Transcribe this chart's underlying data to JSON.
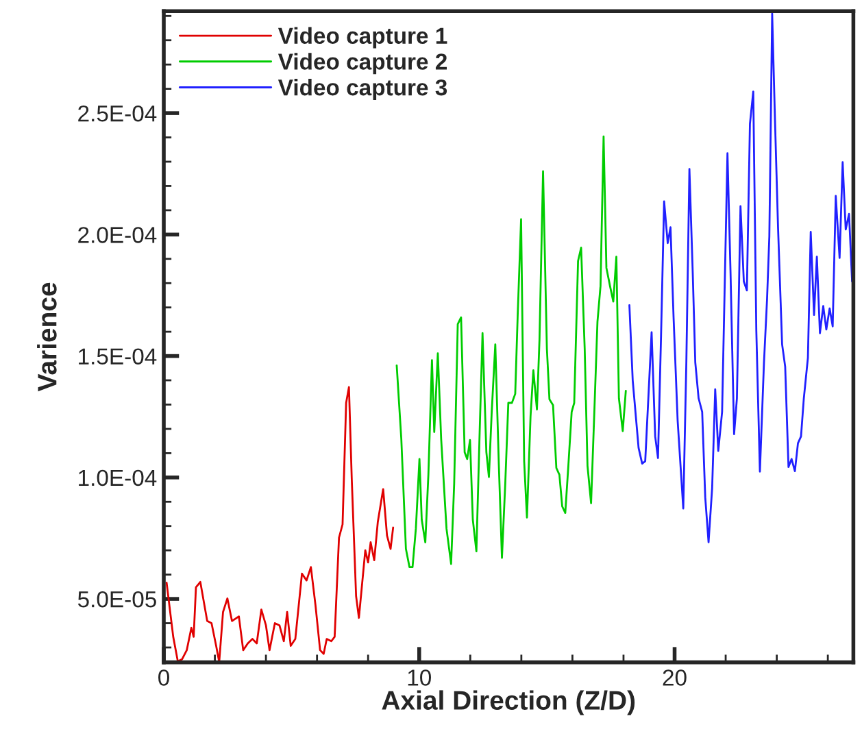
{
  "chart_data": {
    "type": "line",
    "xlabel": "Axial Direction (Z/D)",
    "ylabel": "Varience",
    "xlim": [
      0,
      27
    ],
    "xticks": [
      0,
      10,
      20
    ],
    "ylim": [
      2.39e-05,
      0.000292
    ],
    "yticks": [
      {
        "value": 5e-05,
        "label": "5.0E-05"
      },
      {
        "value": 0.0001,
        "label": "1.0E-04"
      },
      {
        "value": 0.00015,
        "label": "1.5E-04"
      },
      {
        "value": 0.0002,
        "label": "2.0E-04"
      },
      {
        "value": 0.00025,
        "label": "2.5E-04"
      }
    ],
    "grid": false,
    "legend": "top left",
    "marker": "none",
    "line_style": "solid",
    "series": [
      {
        "name": "Video capture 1",
        "color": "#e00000",
        "x": [
          0.11,
          0.37,
          0.55,
          0.72,
          0.9,
          1.08,
          1.17,
          1.26,
          1.43,
          1.7,
          1.87,
          2.05,
          2.17,
          2.32,
          2.49,
          2.67,
          2.94,
          3.11,
          3.29,
          3.47,
          3.64,
          3.82,
          4.0,
          4.14,
          4.35,
          4.53,
          4.7,
          4.83,
          4.97,
          5.15,
          5.41,
          5.59,
          5.76,
          5.94,
          6.12,
          6.26,
          6.38,
          6.56,
          6.69,
          6.86,
          7.0,
          7.14,
          7.25,
          7.36,
          7.53,
          7.64,
          7.89,
          8.0,
          8.1,
          8.24,
          8.38,
          8.59,
          8.74,
          8.88,
          8.98
        ],
        "values": [
          5.67e-05,
          3.44e-05,
          2.43e-05,
          2.52e-05,
          2.89e-05,
          3.81e-05,
          3.44e-05,
          5.48e-05,
          5.7e-05,
          4.09e-05,
          4e-05,
          3.07e-05,
          2.4e-05,
          4.46e-05,
          5.02e-05,
          4.09e-05,
          4.28e-05,
          2.89e-05,
          3.17e-05,
          3.35e-05,
          3.17e-05,
          4.56e-05,
          3.91e-05,
          2.89e-05,
          4e-05,
          3.91e-05,
          3.26e-05,
          4.46e-05,
          3.07e-05,
          3.35e-05,
          6.04e-05,
          5.76e-05,
          6.31e-05,
          4.74e-05,
          2.89e-05,
          2.74e-05,
          3.35e-05,
          3.26e-05,
          3.44e-05,
          7.52e-05,
          8.07e-05,
          0.0001307,
          0.0001372,
          9.93e-05,
          5.11e-05,
          4.22e-05,
          7e-05,
          6.5e-05,
          7.33e-05,
          6.59e-05,
          8.17e-05,
          9.52e-05,
          7.61e-05,
          7.06e-05,
          7.94e-05
        ]
      },
      {
        "name": "Video capture 2",
        "color": "#00cc00",
        "x": [
          9.12,
          9.3,
          9.48,
          9.62,
          9.74,
          9.87,
          10.01,
          10.1,
          10.24,
          10.36,
          10.5,
          10.59,
          10.73,
          10.86,
          11.07,
          11.25,
          11.37,
          11.51,
          11.64,
          11.78,
          11.88,
          11.99,
          12.1,
          12.24,
          12.36,
          12.48,
          12.63,
          12.73,
          12.84,
          12.98,
          13.12,
          13.24,
          13.37,
          13.49,
          13.63,
          13.76,
          13.86,
          13.99,
          14.11,
          14.22,
          14.36,
          14.47,
          14.61,
          14.71,
          14.85,
          15.0,
          15.1,
          15.24,
          15.37,
          15.49,
          15.6,
          15.72,
          15.84,
          15.97,
          16.07,
          16.22,
          16.34,
          16.48,
          16.59,
          16.73,
          16.87,
          16.98,
          17.1,
          17.22,
          17.33,
          17.47,
          17.6,
          17.72,
          17.82,
          17.97,
          18.09
        ],
        "values": [
          0.0001461,
          0.0001159,
          7.06e-05,
          6.31e-05,
          6.31e-05,
          7.89e-05,
          0.0001076,
          8.26e-05,
          7.33e-05,
          0.0001011,
          0.0001483,
          0.0001187,
          0.0001511,
          0.0001159,
          7.89e-05,
          6.44e-05,
          9.74e-05,
          0.0001631,
          0.0001659,
          0.0001104,
          0.0001076,
          0.0001154,
          8.26e-05,
          6.96e-05,
          0.0001159,
          0.0001594,
          0.0001104,
          0.0001002,
          0.000127,
          0.0001548,
          0.0001048,
          6.69e-05,
          9.74e-05,
          0.0001307,
          0.0001307,
          0.0001344,
          0.0001678,
          0.0002063,
          0.0001067,
          8.35e-05,
          0.0001252,
          0.0001441,
          0.000128,
          0.0001567,
          0.0002261,
          0.000153,
          0.0001322,
          0.0001298,
          0.0001039,
          0.0001011,
          8.81e-05,
          8.54e-05,
          0.0001048,
          0.000127,
          0.0001307,
          0.0001891,
          0.0001946,
          0.000153,
          0.0001048,
          8.94e-05,
          0.0001307,
          0.0001641,
          0.0001789,
          0.0002404,
          0.0001863,
          0.0001789,
          0.0001724,
          0.0001909,
          0.0001326,
          0.0001191,
          0.0001357
        ]
      },
      {
        "name": "Video capture 3",
        "color": "#2020ff",
        "x": [
          18.23,
          18.36,
          18.59,
          18.73,
          18.85,
          19.1,
          19.24,
          19.35,
          19.47,
          19.59,
          19.73,
          19.84,
          19.96,
          20.12,
          20.34,
          20.46,
          20.58,
          20.71,
          20.81,
          20.94,
          21.08,
          21.2,
          21.33,
          21.47,
          21.59,
          21.71,
          21.86,
          22.07,
          22.19,
          22.33,
          22.44,
          22.58,
          22.71,
          22.83,
          22.95,
          23.08,
          23.2,
          23.34,
          23.5,
          23.62,
          23.71,
          23.82,
          23.93,
          24.05,
          24.21,
          24.33,
          24.46,
          24.58,
          24.71,
          24.83,
          24.95,
          25.06,
          25.22,
          25.33,
          25.46,
          25.57,
          25.69,
          25.82,
          25.94,
          26.07,
          26.19,
          26.31,
          26.46,
          26.58,
          26.7,
          26.83,
          26.95
        ],
        "values": [
          0.0001709,
          0.00014,
          0.0001122,
          0.0001057,
          0.0001067,
          0.0001598,
          0.0001169,
          0.000108,
          0.0001585,
          0.0002137,
          0.0001965,
          0.000203,
          0.0001659,
          0.0001233,
          8.72e-05,
          0.0001474,
          0.000227,
          0.0001844,
          0.0001474,
          0.0001326,
          0.000127,
          9.18e-05,
          7.33e-05,
          9.56e-05,
          0.0001363,
          0.0001109,
          0.000127,
          0.0002335,
          0.0001844,
          0.0001178,
          0.0001326,
          0.0002117,
          0.0001807,
          0.000177,
          0.0002456,
          0.0002589,
          0.0001604,
          0.0001024,
          0.0001474,
          0.0001733,
          0.0001993,
          0.000291,
          0.0002474,
          0.000203,
          0.0001548,
          0.0001456,
          0.0001043,
          0.0001076,
          0.0001026,
          0.0001141,
          0.0001169,
          0.0001326,
          0.0001493,
          0.0002011,
          0.0001669,
          0.0001909,
          0.0001594,
          0.0001706,
          0.0001609,
          0.0001696,
          0.0001622,
          0.0002159,
          0.0001904,
          0.0002298,
          0.0002021,
          0.0002085,
          0.0001807
        ]
      }
    ]
  }
}
